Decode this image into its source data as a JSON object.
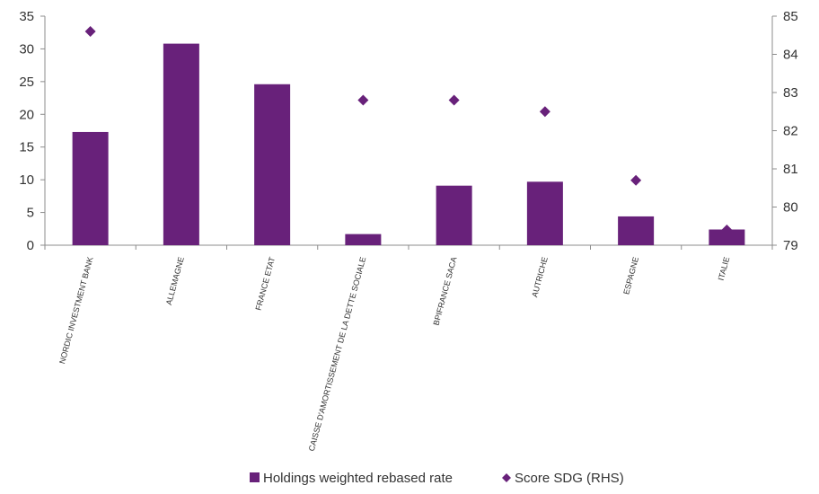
{
  "chart_data": {
    "type": "bar",
    "title": "",
    "xlabel": "",
    "ylabel": "",
    "y2label": "",
    "categories": [
      "NORDIC INVESTMENT BANK",
      "ALLEMAGNE",
      "FRANCE ETAT",
      "CAISSE D'AMORTISSEMENT DE LA DETTE SOCIALE",
      "BPIFRANCE SACA",
      "AUTRICHE",
      "ESPAGNE",
      "ITALIE"
    ],
    "series": [
      {
        "name": "Holdings weighted rebased rate",
        "type": "bar",
        "axis": "left",
        "color": "#68217a",
        "values": [
          17.3,
          30.8,
          24.6,
          1.7,
          9.1,
          9.7,
          4.4,
          2.4
        ]
      },
      {
        "name": "Score SDG (RHS)",
        "type": "scatter",
        "marker": "diamond",
        "axis": "right",
        "color": "#68217a",
        "values": [
          84.6,
          null,
          null,
          82.8,
          82.8,
          82.5,
          80.7,
          79.4
        ]
      }
    ],
    "ylim": [
      0,
      35
    ],
    "yticks": [
      "0",
      "5",
      "10",
      "15",
      "20",
      "25",
      "30",
      "35"
    ],
    "y2lim": [
      79,
      85
    ],
    "y2ticks": [
      "79",
      "80",
      "81",
      "82",
      "83",
      "84",
      "85"
    ],
    "grid": false,
    "legend": "bottom-center"
  }
}
